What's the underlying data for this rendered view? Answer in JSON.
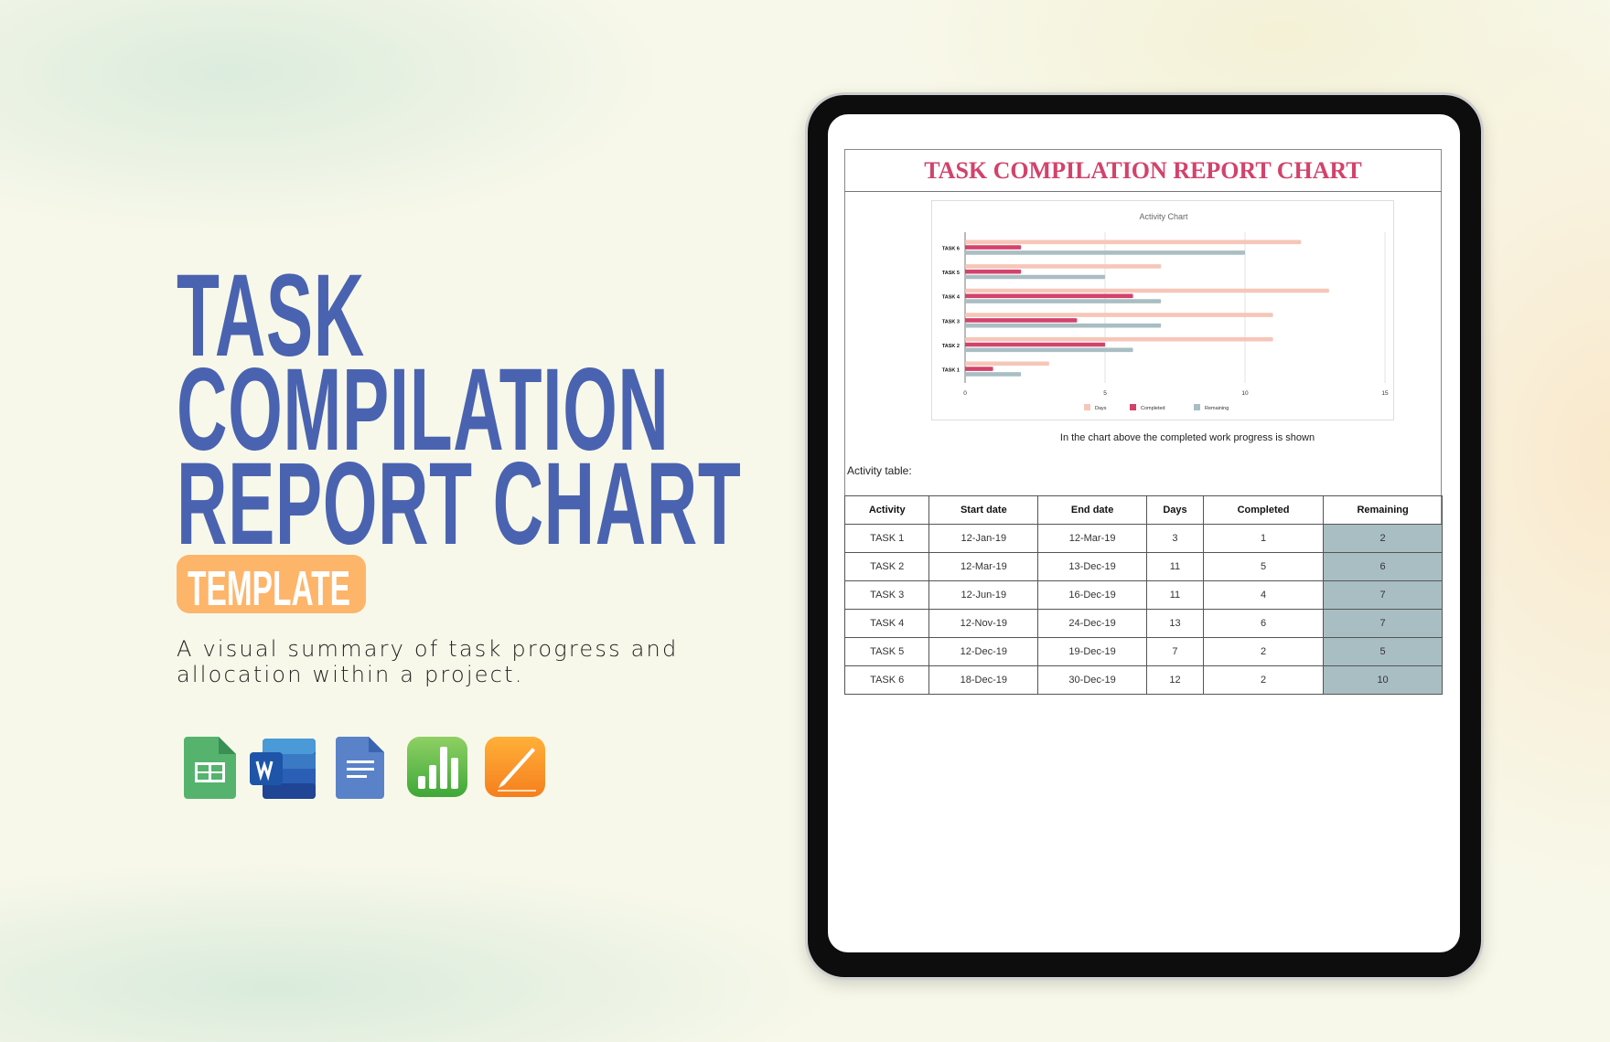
{
  "hero": {
    "title_lines": [
      "TASK",
      "COMPILATION",
      "REPORT CHART"
    ],
    "badge": "TEMPLATE",
    "subtitle": "A visual summary of task progress and allocation within a project.",
    "app_icons": [
      "google-sheets-icon",
      "microsoft-word-icon",
      "google-docs-icon",
      "apple-numbers-icon",
      "apple-pages-icon"
    ]
  },
  "document": {
    "title": "TASK COMPILATION REPORT CHART",
    "caption": "In the chart above the completed work progress is shown",
    "table_label": "Activity table:"
  },
  "colors": {
    "title": "#d2436b",
    "days": "#f6c6b8",
    "completed": "#d2436b",
    "remaining": "#a9bec3",
    "hero": "#4a63b0",
    "badge": "#fdb56a"
  },
  "chart_data": {
    "type": "bar",
    "orientation": "horizontal",
    "title": "Activity Chart",
    "categories": [
      "TASK 6",
      "TASK 5",
      "TASK 4",
      "TASK 3",
      "TASK 2",
      "TASK 1"
    ],
    "series": [
      {
        "name": "Days",
        "values": [
          12,
          7,
          13,
          11,
          11,
          3
        ]
      },
      {
        "name": "Completed",
        "values": [
          2,
          2,
          6,
          4,
          5,
          1
        ]
      },
      {
        "name": "Remaining",
        "values": [
          10,
          5,
          7,
          7,
          6,
          2
        ]
      }
    ],
    "xlim": [
      0,
      15
    ],
    "xticks": [
      "0",
      "5",
      "10",
      "15"
    ],
    "grid": true,
    "legend": "bottom"
  },
  "table": {
    "headers": [
      "Activity",
      "Start date",
      "End date",
      "Days",
      "Completed",
      "Remaining"
    ],
    "rows": [
      [
        "TASK 1",
        "12-Jan-19",
        "12-Mar-19",
        "3",
        "1",
        "2"
      ],
      [
        "TASK 2",
        "12-Mar-19",
        "13-Dec-19",
        "11",
        "5",
        "6"
      ],
      [
        "TASK 3",
        "12-Jun-19",
        "16-Dec-19",
        "11",
        "4",
        "7"
      ],
      [
        "TASK 4",
        "12-Nov-19",
        "24-Dec-19",
        "13",
        "6",
        "7"
      ],
      [
        "TASK 5",
        "12-Dec-19",
        "19-Dec-19",
        "7",
        "2",
        "5"
      ],
      [
        "TASK 6",
        "18-Dec-19",
        "30-Dec-19",
        "12",
        "2",
        "10"
      ]
    ]
  }
}
